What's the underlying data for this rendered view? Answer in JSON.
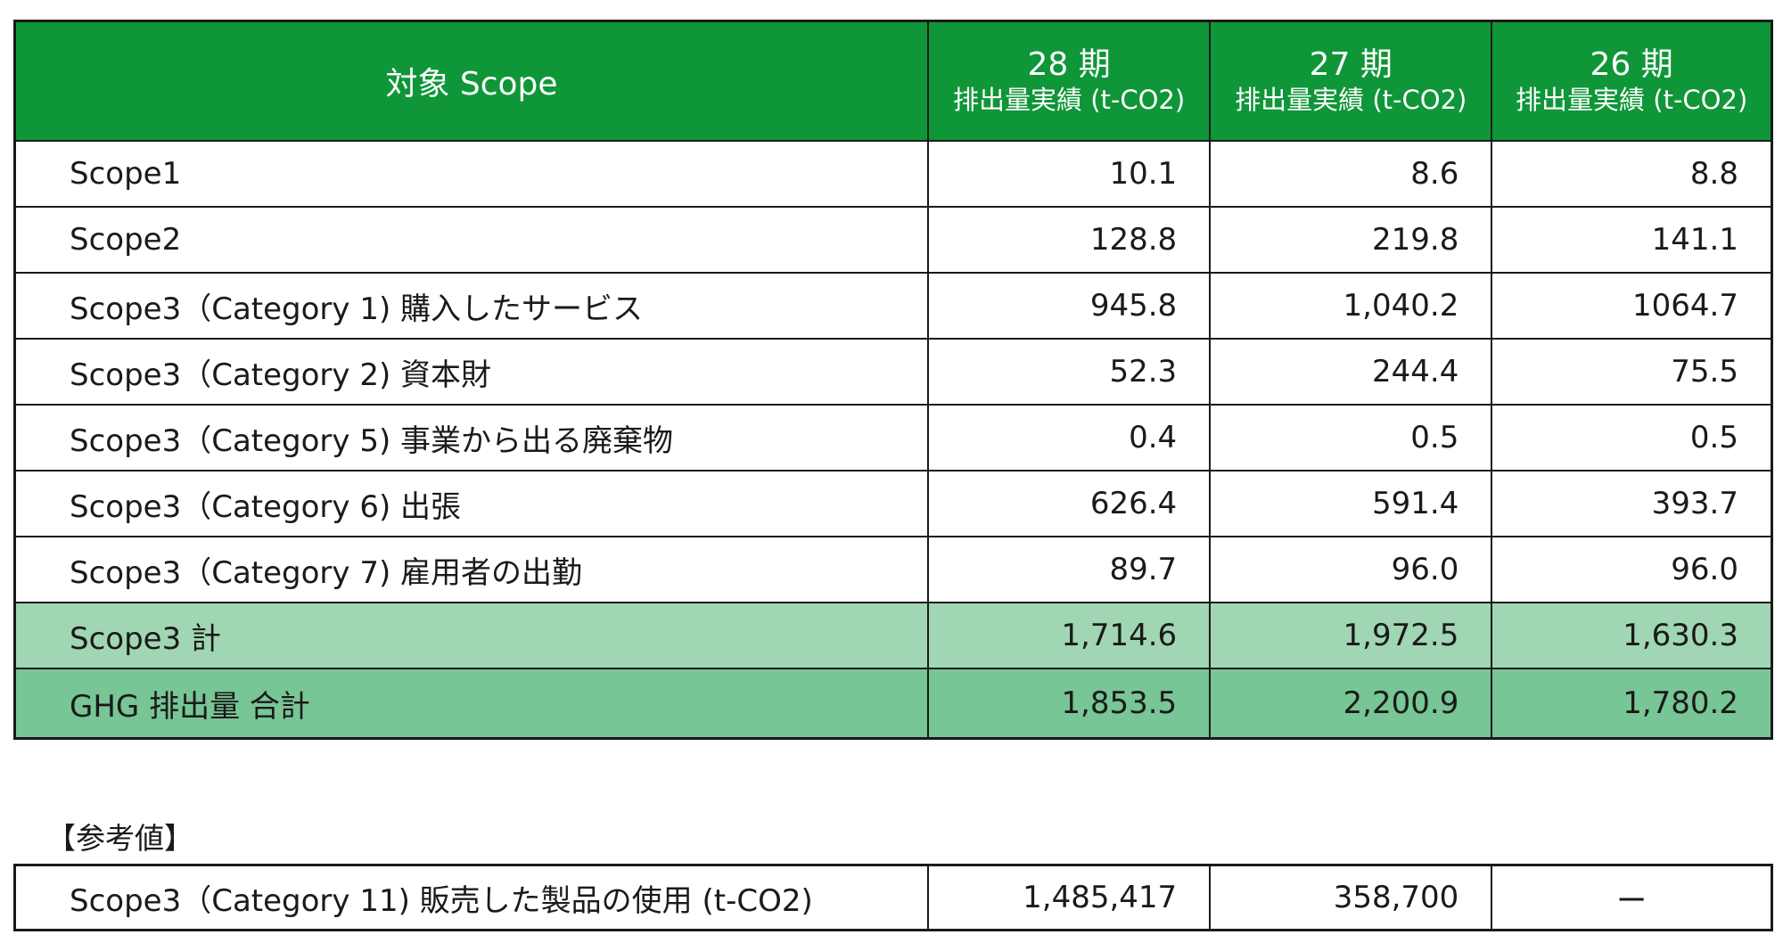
{
  "table": {
    "header": {
      "label": "対象 Scope",
      "columns": [
        {
          "period": "28 期",
          "sub": "排出量実績 (t-CO2)"
        },
        {
          "period": "27 期",
          "sub": "排出量実績 (t-CO2)"
        },
        {
          "period": "26 期",
          "sub": "排出量実績 (t-CO2)"
        }
      ]
    },
    "rows": [
      {
        "label": "Scope1",
        "values": [
          "10.1",
          "8.6",
          "8.8"
        ]
      },
      {
        "label": "Scope2",
        "values": [
          "128.8",
          "219.8",
          "141.1"
        ]
      },
      {
        "label": "Scope3（Category 1) 購入したサービス",
        "values": [
          "945.8",
          "1,040.2",
          "1064.7"
        ]
      },
      {
        "label": "Scope3（Category 2) 資本財",
        "values": [
          "52.3",
          "244.4",
          "75.5"
        ]
      },
      {
        "label": "Scope3（Category 5) 事業から出る廃棄物",
        "values": [
          "0.4",
          "0.5",
          "0.5"
        ]
      },
      {
        "label": "Scope3（Category 6) 出張",
        "values": [
          "626.4",
          "591.4",
          "393.7"
        ]
      },
      {
        "label": "Scope3（Category 7) 雇用者の出勤",
        "values": [
          "89.7",
          "96.0",
          "96.0"
        ]
      }
    ],
    "subtotal": {
      "label": "Scope3 計",
      "values": [
        "1,714.6",
        "1,972.5",
        "1,630.3"
      ]
    },
    "total": {
      "label": "GHG 排出量 合計",
      "values": [
        "1,853.5",
        "2,200.9",
        "1,780.2"
      ]
    }
  },
  "reference": {
    "title": "【参考値】",
    "row": {
      "label": "Scope3（Category 11) 販売した製品の使用 (t-CO2)",
      "values": [
        "1,485,417",
        "358,700",
        "ー"
      ]
    }
  },
  "colors": {
    "header_green": "#0f9638",
    "subtotal_green": "#a0d6b3",
    "total_green": "#78c596"
  }
}
